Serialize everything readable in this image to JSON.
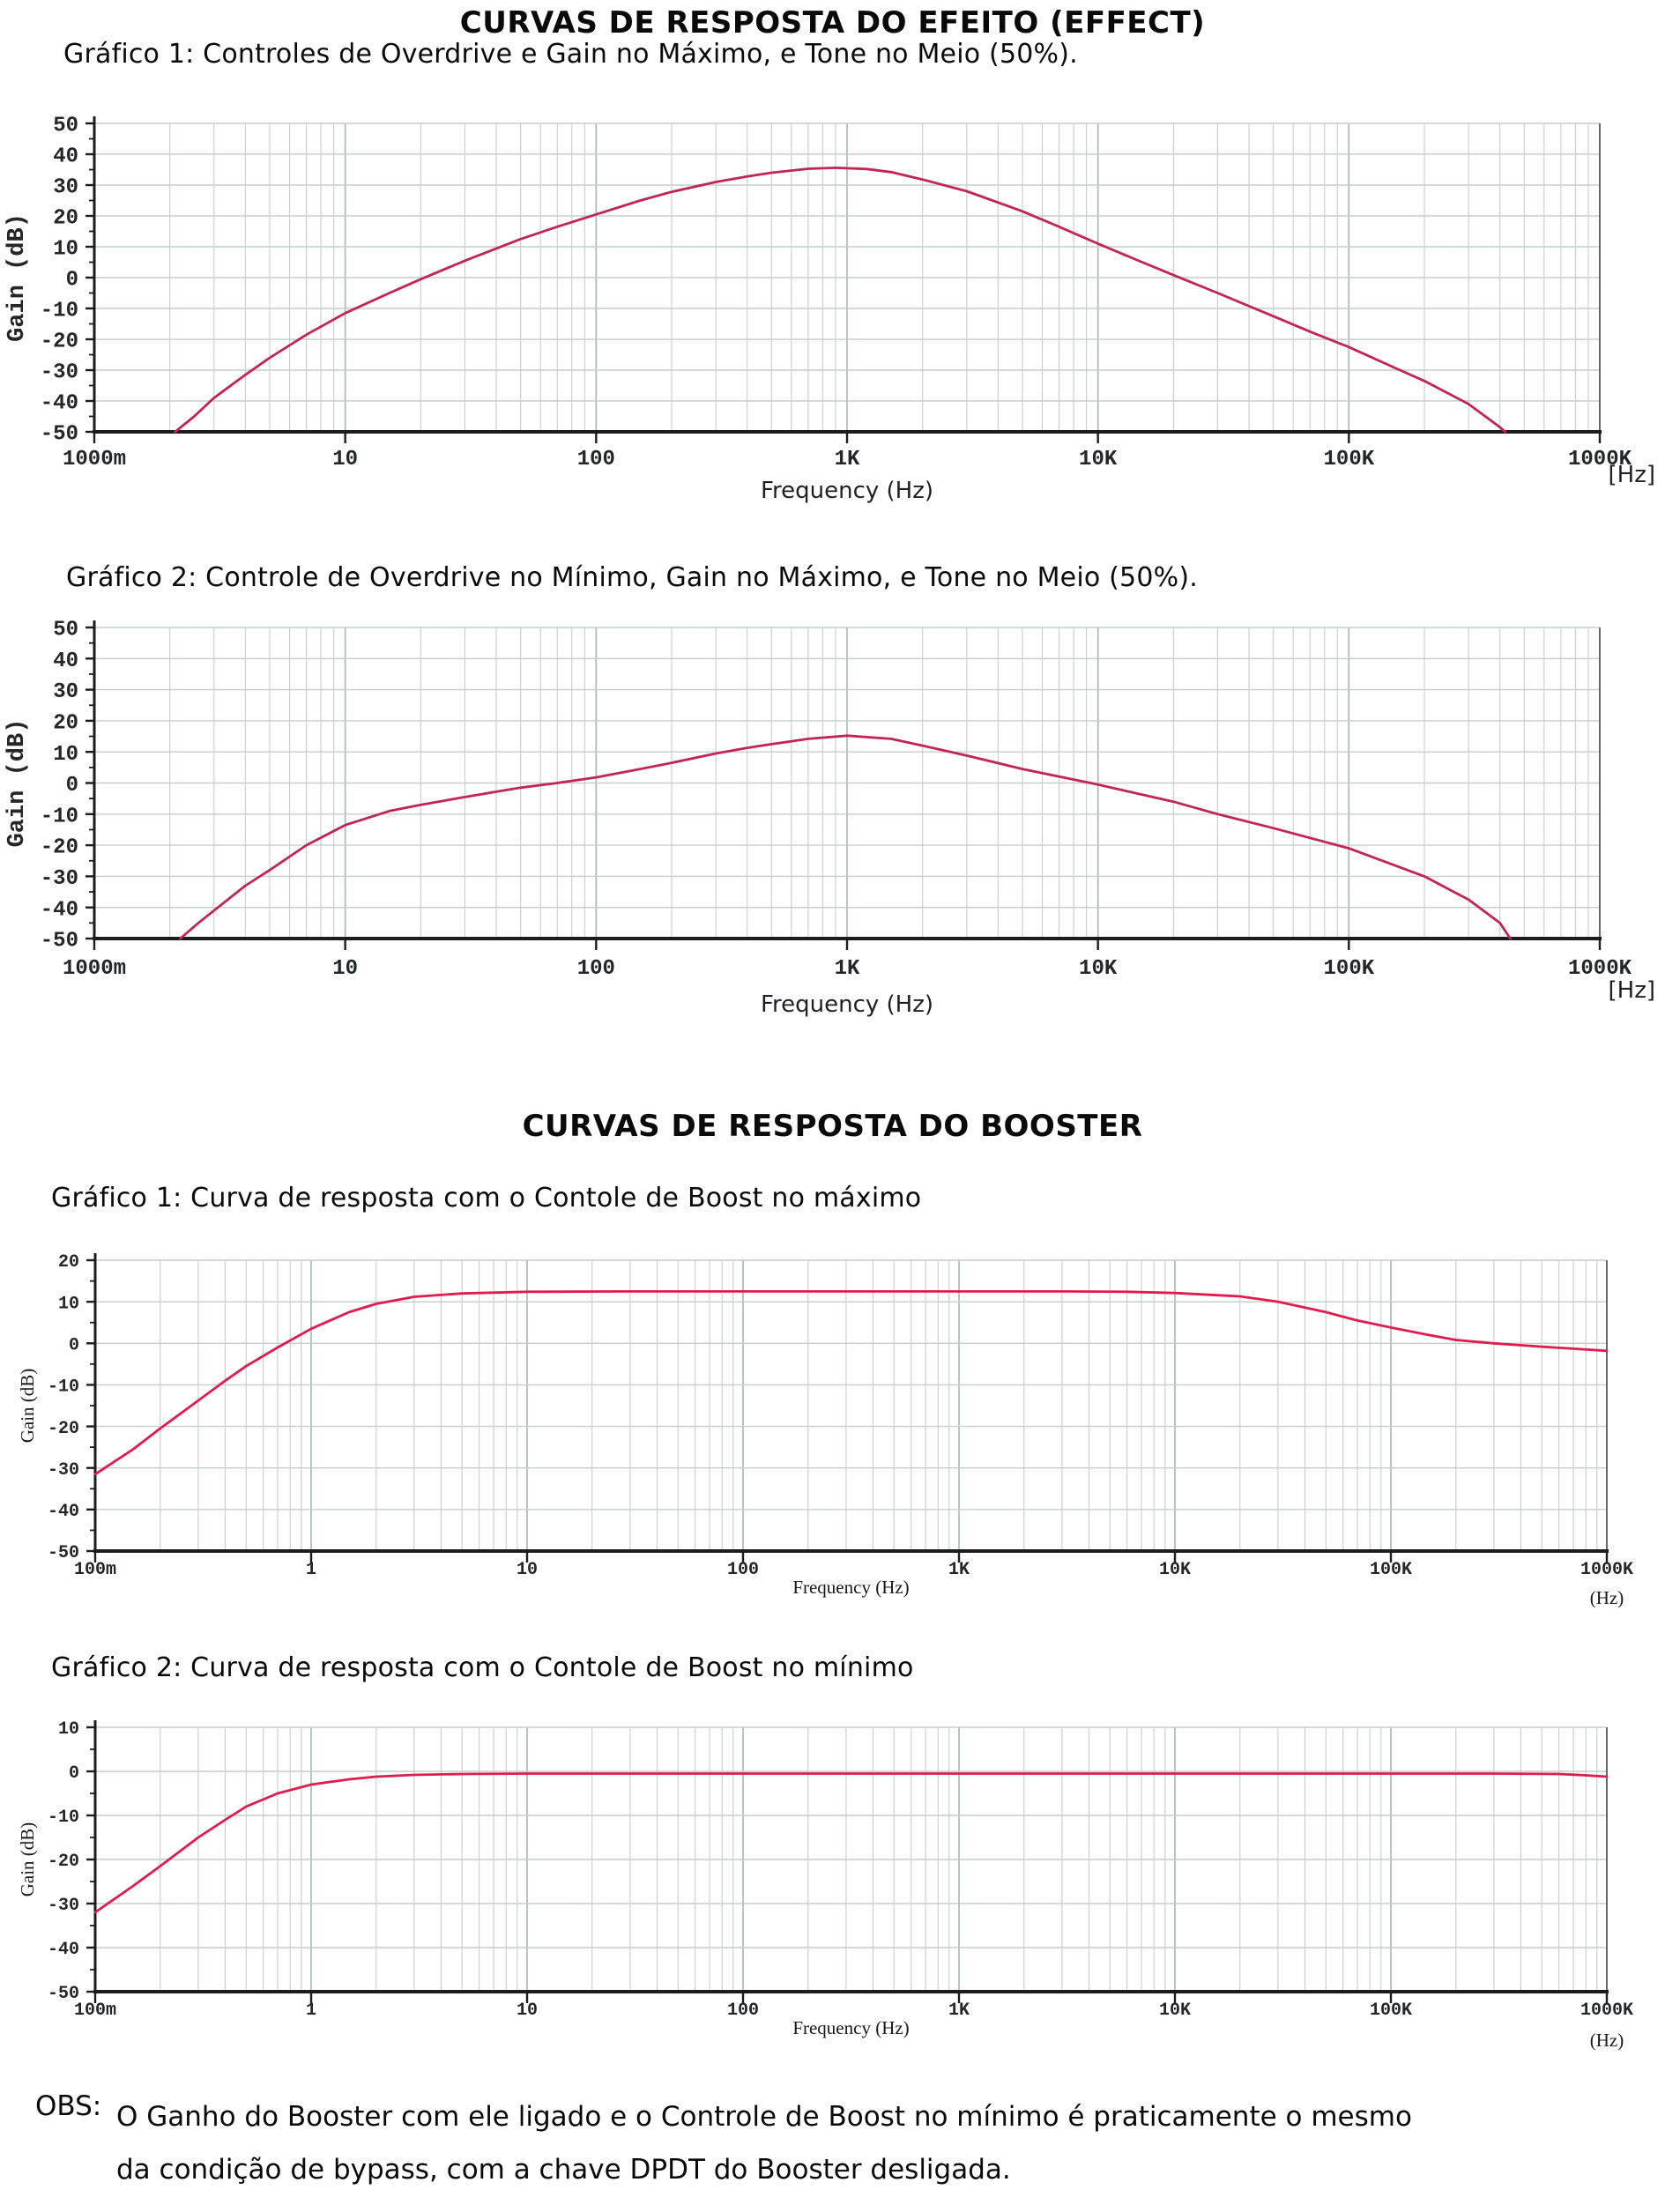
{
  "page": {
    "effect_section_title": "CURVAS DE RESPOSTA DO EFEITO (EFFECT)",
    "booster_section_title": "CURVAS DE RESPOSTA DO BOOSTER",
    "obs": {
      "label": "OBS:",
      "line1": "O Ganho do Booster com ele ligado e o Controle de Boost no mínimo é praticamente o mesmo",
      "line2": "da condição de bypass, com a chave DPDT do Booster desligada."
    }
  },
  "colors": {
    "effect_curve": "#c22455",
    "booster_curve": "#e01b4e",
    "grid_minor": "#c4cfcc",
    "grid_major": "#a7b6b3",
    "axis": "#1c1c1c"
  },
  "chart_data": [
    {
      "id": "effect-grafico-1",
      "type": "line",
      "title": "Gráfico 1: Controles de Overdrive e Gain no Máximo, e Tone no Meio (50%).",
      "xlabel": "Frequency  (Hz)",
      "x_unit_label": "[Hz]",
      "ylabel": "Gain (dB)",
      "x_scale": "log",
      "xlim": [
        1,
        1000000
      ],
      "x_tick_labels": [
        "1000m",
        "10",
        "100",
        "1K",
        "10K",
        "100K",
        "1000K"
      ],
      "ylim": [
        -50,
        50
      ],
      "y_tick_step": 10,
      "grid": true,
      "series": [
        {
          "name": "Gain",
          "color": "#c22455",
          "points": [
            [
              2.1,
              -50
            ],
            [
              2.5,
              -45
            ],
            [
              3,
              -39
            ],
            [
              4,
              -31.5
            ],
            [
              5,
              -26
            ],
            [
              7,
              -18.5
            ],
            [
              10,
              -11.5
            ],
            [
              15,
              -5
            ],
            [
              20,
              -0.5
            ],
            [
              30,
              5.5
            ],
            [
              50,
              12.5
            ],
            [
              70,
              16.5
            ],
            [
              100,
              20.5
            ],
            [
              150,
              25
            ],
            [
              200,
              27.8
            ],
            [
              300,
              31
            ],
            [
              400,
              32.8
            ],
            [
              500,
              34
            ],
            [
              700,
              35.3
            ],
            [
              900,
              35.6
            ],
            [
              1200,
              35.2
            ],
            [
              1500,
              34.2
            ],
            [
              2000,
              31.8
            ],
            [
              3000,
              28
            ],
            [
              5000,
              21.5
            ],
            [
              7000,
              16.5
            ],
            [
              10000,
              11
            ],
            [
              15000,
              5
            ],
            [
              20000,
              0.8
            ],
            [
              30000,
              -5
            ],
            [
              50000,
              -12.5
            ],
            [
              70000,
              -17.5
            ],
            [
              100000,
              -22.5
            ],
            [
              150000,
              -29
            ],
            [
              200000,
              -33.5
            ],
            [
              300000,
              -41
            ],
            [
              400000,
              -48.5
            ],
            [
              420000,
              -50
            ]
          ]
        }
      ]
    },
    {
      "id": "effect-grafico-2",
      "type": "line",
      "title": "Gráfico 2: Controle de Overdrive no Mínimo, Gain no Máximo, e Tone no Meio (50%).",
      "xlabel": "Frequency  (Hz)",
      "x_unit_label": "[Hz]",
      "ylabel": "Gain (dB)",
      "x_scale": "log",
      "xlim": [
        1,
        1000000
      ],
      "x_tick_labels": [
        "1000m",
        "10",
        "100",
        "1K",
        "10K",
        "100K",
        "1000K"
      ],
      "ylim": [
        -50,
        50
      ],
      "y_tick_step": 10,
      "grid": true,
      "series": [
        {
          "name": "Gain",
          "color": "#c22455",
          "points": [
            [
              2.2,
              -50
            ],
            [
              2.6,
              -45
            ],
            [
              3,
              -41
            ],
            [
              4,
              -33
            ],
            [
              5,
              -28
            ],
            [
              7,
              -20
            ],
            [
              10,
              -13.5
            ],
            [
              15,
              -9
            ],
            [
              20,
              -7
            ],
            [
              30,
              -4.5
            ],
            [
              50,
              -1.5
            ],
            [
              70,
              0
            ],
            [
              100,
              1.8
            ],
            [
              150,
              4.5
            ],
            [
              200,
              6.5
            ],
            [
              300,
              9.5
            ],
            [
              400,
              11.3
            ],
            [
              500,
              12.5
            ],
            [
              700,
              14.2
            ],
            [
              1000,
              15.2
            ],
            [
              1500,
              14.2
            ],
            [
              2000,
              12
            ],
            [
              3000,
              8.8
            ],
            [
              5000,
              4.5
            ],
            [
              10000,
              -0.5
            ],
            [
              20000,
              -6
            ],
            [
              30000,
              -10
            ],
            [
              50000,
              -14.5
            ],
            [
              100000,
              -21
            ],
            [
              200000,
              -30
            ],
            [
              300000,
              -37.5
            ],
            [
              400000,
              -45
            ],
            [
              440000,
              -50
            ]
          ]
        }
      ]
    },
    {
      "id": "booster-grafico-1",
      "type": "line",
      "title": "Gráfico 1: Curva de resposta com o Contole de Boost no máximo",
      "xlabel": "Frequency (Hz)",
      "x_unit_label": "(Hz)",
      "ylabel": "Gain (dB)",
      "x_scale": "log",
      "xlim": [
        0.1,
        1000000
      ],
      "x_tick_labels": [
        "100m",
        "1",
        "10",
        "100",
        "1K",
        "10K",
        "100K",
        "1000K"
      ],
      "ylim": [
        -50,
        20
      ],
      "y_tick_step": 10,
      "grid": true,
      "series": [
        {
          "name": "Gain",
          "color": "#e01b4e",
          "points": [
            [
              0.1,
              -31.5
            ],
            [
              0.15,
              -25.5
            ],
            [
              0.2,
              -20.5
            ],
            [
              0.3,
              -13.8
            ],
            [
              0.4,
              -9
            ],
            [
              0.5,
              -5.5
            ],
            [
              0.7,
              -1
            ],
            [
              1,
              3.5
            ],
            [
              1.5,
              7.5
            ],
            [
              2,
              9.5
            ],
            [
              3,
              11.2
            ],
            [
              5,
              12
            ],
            [
              10,
              12.4
            ],
            [
              30,
              12.5
            ],
            [
              100,
              12.5
            ],
            [
              300,
              12.5
            ],
            [
              1000,
              12.5
            ],
            [
              3000,
              12.5
            ],
            [
              6000,
              12.4
            ],
            [
              10000,
              12.1
            ],
            [
              20000,
              11.3
            ],
            [
              30000,
              10
            ],
            [
              50000,
              7.5
            ],
            [
              70000,
              5.5
            ],
            [
              100000,
              3.8
            ],
            [
              150000,
              2
            ],
            [
              200000,
              0.8
            ],
            [
              300000,
              0
            ],
            [
              500000,
              -0.8
            ],
            [
              700000,
              -1.3
            ],
            [
              1000000,
              -1.8
            ]
          ]
        }
      ]
    },
    {
      "id": "booster-grafico-2",
      "type": "line",
      "title": "Gráfico 2: Curva de resposta com o Contole de Boost no mínimo",
      "xlabel": "Frequency (Hz)",
      "x_unit_label": "(Hz)",
      "ylabel": "Gain (dB)",
      "x_scale": "log",
      "xlim": [
        0.1,
        1000000
      ],
      "x_tick_labels": [
        "100m",
        "1",
        "10",
        "100",
        "1K",
        "10K",
        "100K",
        "1000K"
      ],
      "ylim": [
        -50,
        10
      ],
      "y_tick_step": 10,
      "grid": true,
      "series": [
        {
          "name": "Gain",
          "color": "#e01b4e",
          "points": [
            [
              0.1,
              -32
            ],
            [
              0.15,
              -26
            ],
            [
              0.2,
              -21.5
            ],
            [
              0.3,
              -15
            ],
            [
              0.4,
              -11
            ],
            [
              0.5,
              -8
            ],
            [
              0.7,
              -5
            ],
            [
              1,
              -3
            ],
            [
              1.5,
              -1.8
            ],
            [
              2,
              -1.2
            ],
            [
              3,
              -0.8
            ],
            [
              5,
              -0.6
            ],
            [
              10,
              -0.5
            ],
            [
              100,
              -0.5
            ],
            [
              1000,
              -0.5
            ],
            [
              10000,
              -0.5
            ],
            [
              100000,
              -0.5
            ],
            [
              300000,
              -0.5
            ],
            [
              600000,
              -0.6
            ],
            [
              800000,
              -0.9
            ],
            [
              1000000,
              -1.2
            ]
          ]
        }
      ]
    }
  ]
}
